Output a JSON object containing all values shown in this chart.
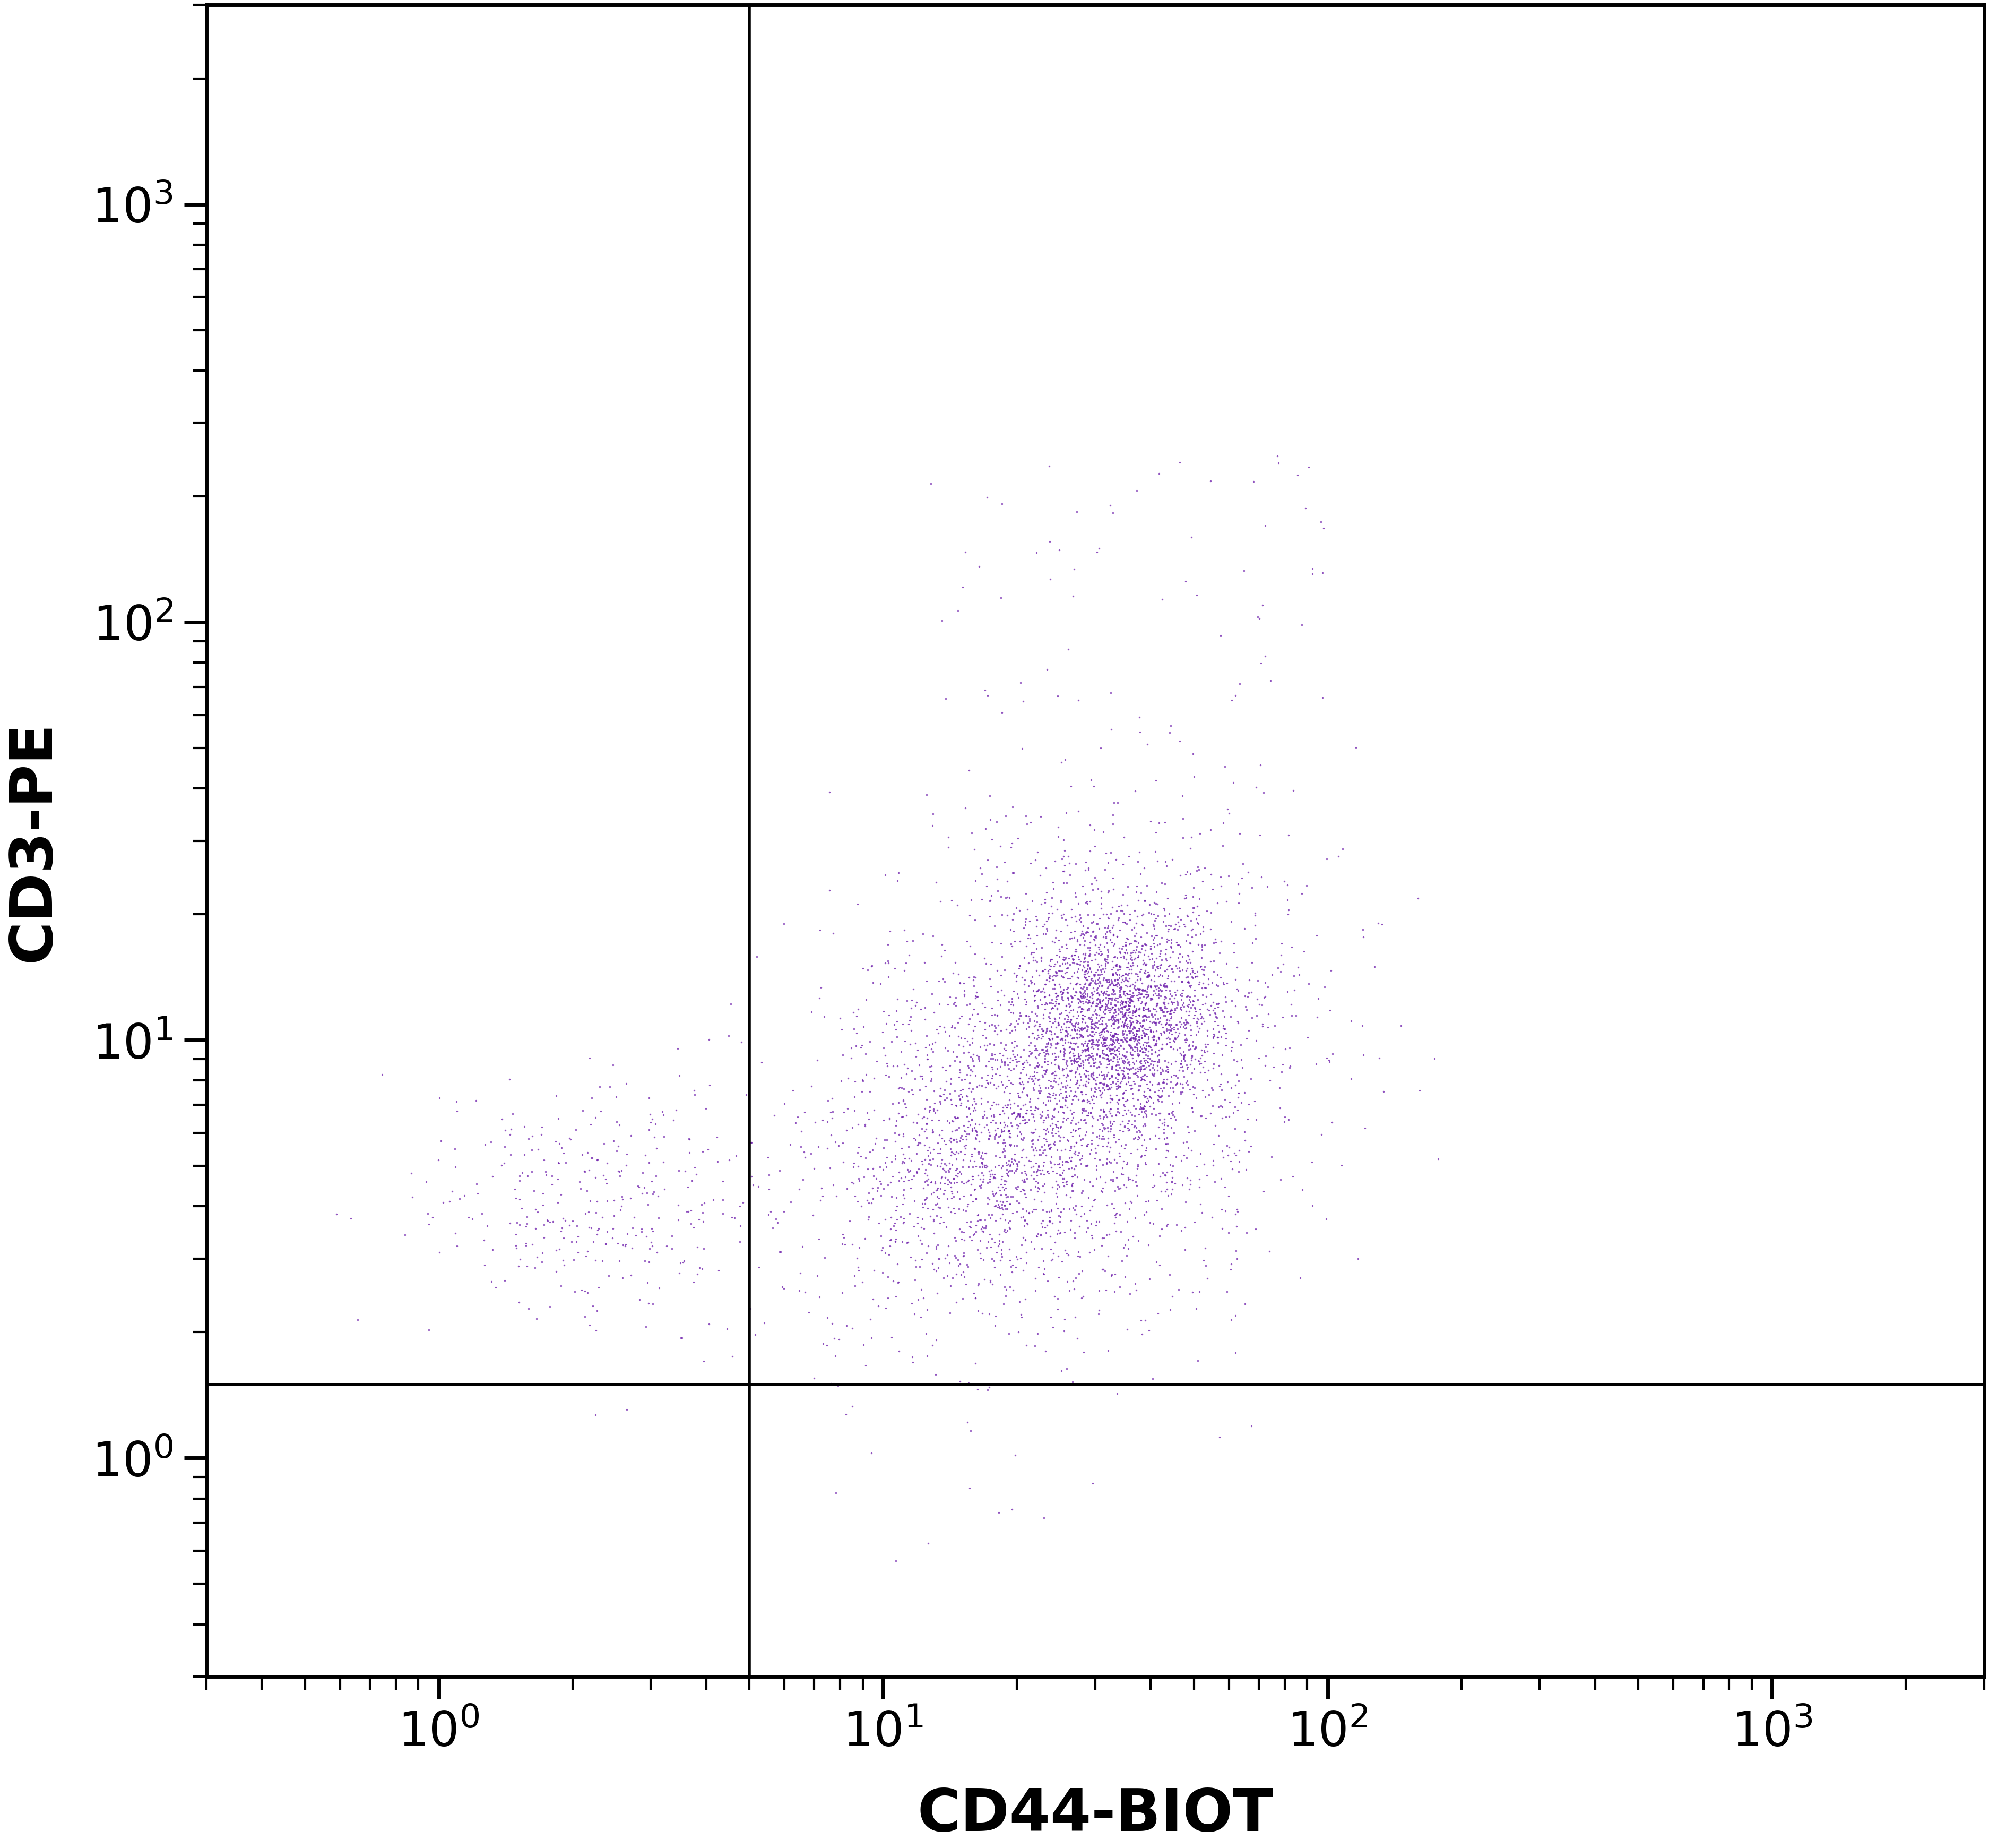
{
  "xlabel": "CD44-BIOT",
  "ylabel": "CD3-PE",
  "xlim": [
    0.3,
    3000
  ],
  "ylim": [
    0.3,
    3000
  ],
  "dot_color": "#6B1AAA",
  "dot_alpha": 0.75,
  "dot_size": 6,
  "quadrant_x": 5.0,
  "quadrant_y": 1.5,
  "xlabel_fontsize": 80,
  "ylabel_fontsize": 80,
  "tick_fontsize": 65,
  "axis_linewidth": 5,
  "quadrant_linewidth": 4,
  "background_color": "#ffffff",
  "clusters": [
    {
      "name": "upper_right_main",
      "center_x_log": 1.52,
      "center_y_log": 1.05,
      "spread_x": 0.18,
      "spread_y": 0.2,
      "n": 3500
    },
    {
      "name": "lower_left",
      "center_x_log": 0.35,
      "center_y_log": 0.62,
      "spread_x": 0.18,
      "spread_y": 0.14,
      "n": 350
    },
    {
      "name": "lower_right_dense",
      "center_x_log": 1.25,
      "center_y_log": 0.72,
      "spread_x": 0.22,
      "spread_y": 0.22,
      "n": 1800
    }
  ]
}
